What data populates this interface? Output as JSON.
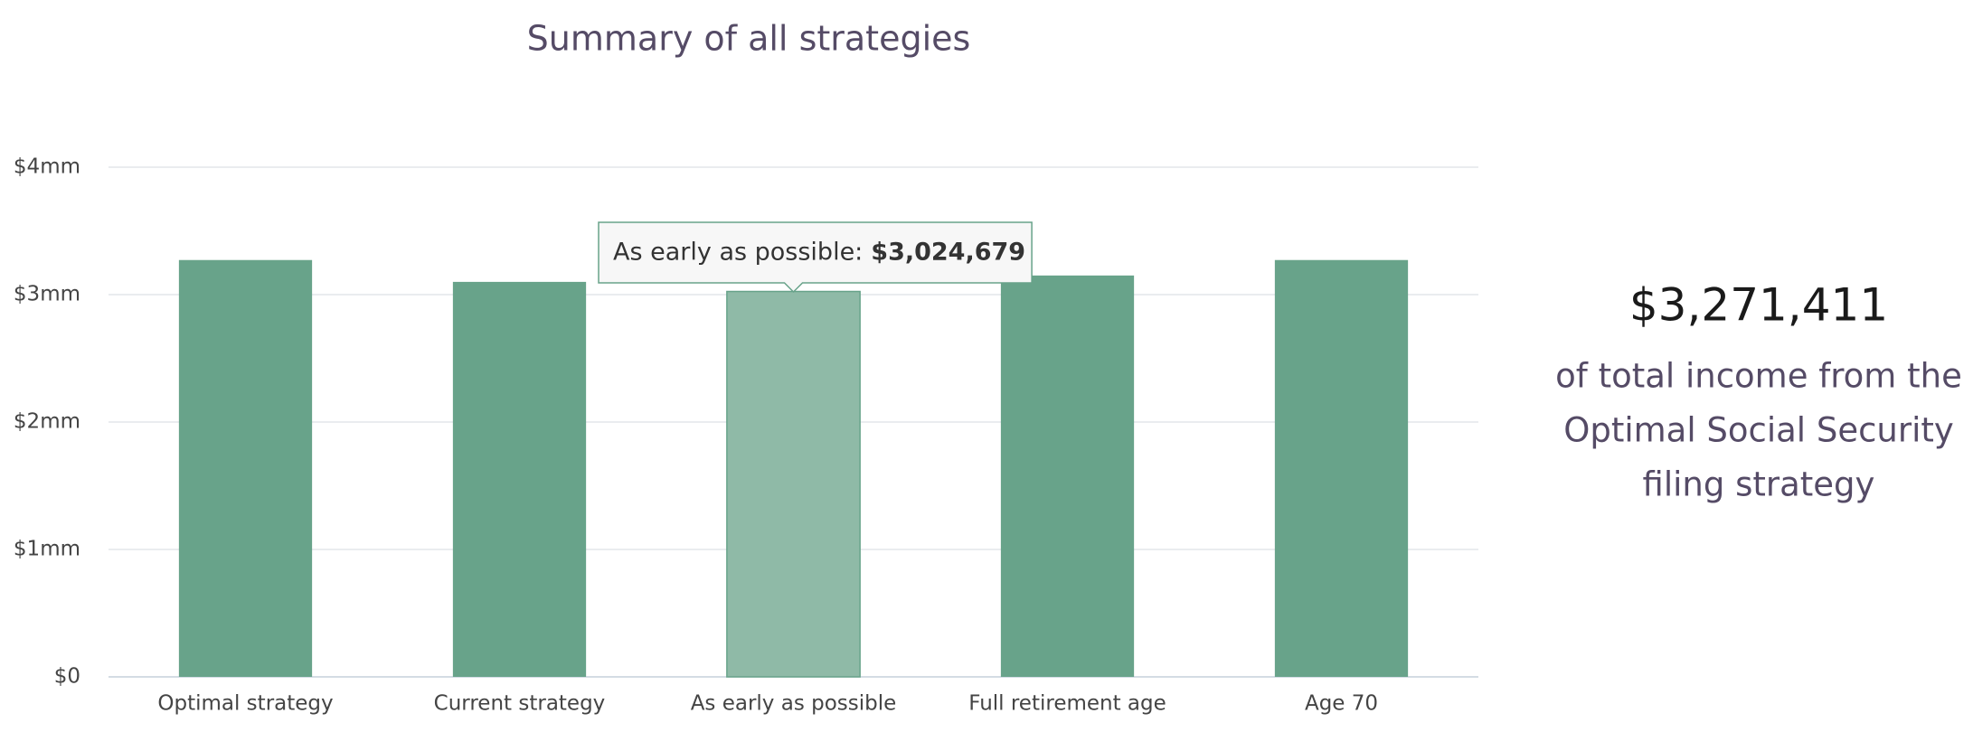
{
  "chart_data": {
    "type": "bar",
    "title": "Summary of all strategies",
    "categories": [
      "Optimal strategy",
      "Current strategy",
      "As early as possible",
      "Full retirement age",
      "Age 70"
    ],
    "values": [
      3271411,
      3100000,
      3024679,
      3150000,
      3271411
    ],
    "color": "#68a38a",
    "highlight_color": "#8fbaa7",
    "ylim": [
      0,
      4000000
    ],
    "yticks": [
      {
        "value": 0,
        "label": "$0"
      },
      {
        "value": 1000000,
        "label": "$1mm"
      },
      {
        "value": 2000000,
        "label": "$2mm"
      },
      {
        "value": 3000000,
        "label": "$3mm"
      },
      {
        "value": 4000000,
        "label": "$4mm"
      }
    ],
    "grid": true,
    "tooltip": {
      "label": "As early as possible:",
      "value": "$3,024,679"
    }
  },
  "summary": {
    "amount": "$3,271,411",
    "lines": [
      "of total income from the",
      "Optimal Social Security",
      "filing strategy"
    ]
  }
}
